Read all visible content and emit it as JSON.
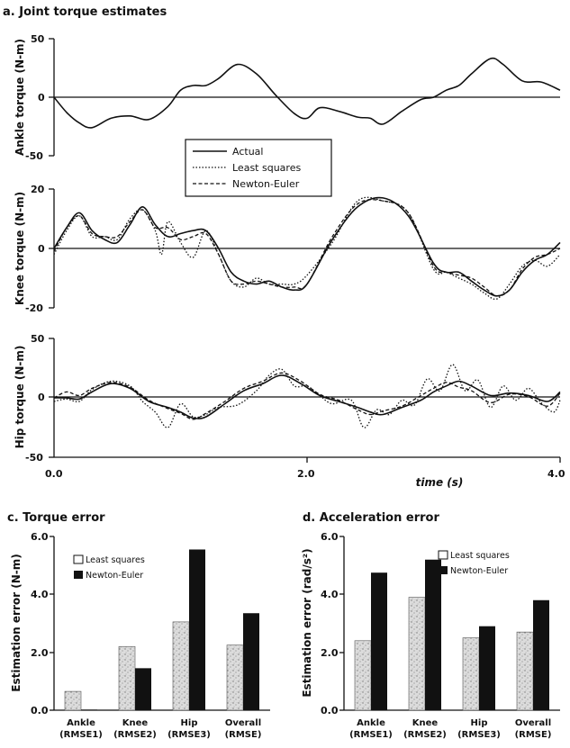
{
  "chart_data": [
    {
      "type": "line",
      "panel_title": "a. Joint torque estimates",
      "ylabel": "Ankle torque (N-m)",
      "ylim": [
        -50,
        50
      ],
      "yticks": [
        "50",
        "0",
        "-50"
      ],
      "xlim": [
        0,
        4
      ],
      "legend": [
        "Actual",
        "Least squares",
        "Newton-Euler"
      ],
      "series": [
        {
          "name": "Actual",
          "style": "solid",
          "x": [
            0,
            0.1,
            0.2,
            0.3,
            0.45,
            0.6,
            0.75,
            0.9,
            1.0,
            1.1,
            1.2,
            1.3,
            1.45,
            1.6,
            1.75,
            1.9,
            2.0,
            2.1,
            2.25,
            2.4,
            2.5,
            2.6,
            2.75,
            2.9,
            3.0,
            3.1,
            3.2,
            3.3,
            3.45,
            3.55,
            3.7,
            3.85,
            4.0
          ],
          "values": [
            0,
            -13,
            -22,
            -26,
            -18,
            -16,
            -19,
            -8,
            6,
            10,
            10,
            16,
            28,
            20,
            2,
            -14,
            -18,
            -9,
            -12,
            -17,
            -18,
            -23,
            -12,
            -2,
            0,
            6,
            10,
            20,
            33,
            28,
            14,
            13,
            6
          ]
        }
      ]
    },
    {
      "type": "line",
      "ylabel": "Knee torque (N-m)",
      "ylim": [
        -20,
        20
      ],
      "yticks": [
        "20",
        "0",
        "-20"
      ],
      "xlim": [
        0,
        4
      ],
      "series": [
        {
          "name": "Actual",
          "style": "solid",
          "x": [
            0,
            0.1,
            0.2,
            0.3,
            0.4,
            0.5,
            0.6,
            0.7,
            0.8,
            0.9,
            1.0,
            1.1,
            1.2,
            1.3,
            1.4,
            1.5,
            1.6,
            1.7,
            1.8,
            1.9,
            2.0,
            2.2,
            2.4,
            2.6,
            2.8,
            3.0,
            3.1,
            3.2,
            3.3,
            3.4,
            3.5,
            3.6,
            3.7,
            3.8,
            3.9,
            4.0
          ],
          "values": [
            0,
            7,
            12,
            6,
            3,
            2,
            8,
            14,
            8,
            4,
            5,
            6,
            6,
            0,
            -8,
            -11,
            -12,
            -11,
            -13,
            -14,
            -12,
            3,
            14,
            17,
            11,
            -5,
            -8,
            -8,
            -11,
            -14,
            -16,
            -14,
            -8,
            -4,
            -2,
            2
          ]
        },
        {
          "name": "Least squares",
          "style": "dotted",
          "x": [
            0,
            0.1,
            0.2,
            0.3,
            0.4,
            0.5,
            0.6,
            0.7,
            0.8,
            0.85,
            0.9,
            1.0,
            1.1,
            1.2,
            1.3,
            1.4,
            1.5,
            1.6,
            1.7,
            1.8,
            1.9,
            2.0,
            2.2,
            2.4,
            2.6,
            2.8,
            3.0,
            3.1,
            3.2,
            3.3,
            3.4,
            3.5,
            3.6,
            3.7,
            3.8,
            3.9,
            4.0
          ],
          "values": [
            -2,
            6,
            11,
            4,
            4,
            3,
            10,
            13,
            6,
            -2,
            9,
            2,
            -3,
            6,
            -2,
            -11,
            -13,
            -10,
            -12,
            -12,
            -12,
            -9,
            2,
            16,
            16,
            12,
            -7,
            -8,
            -10,
            -12,
            -15,
            -17,
            -12,
            -6,
            -4,
            -6,
            -2
          ]
        },
        {
          "name": "Newton-Euler",
          "style": "dashed",
          "x": [
            0,
            0.1,
            0.2,
            0.3,
            0.4,
            0.5,
            0.6,
            0.7,
            0.8,
            0.9,
            1.0,
            1.1,
            1.2,
            1.3,
            1.4,
            1.5,
            1.6,
            1.7,
            1.8,
            1.9,
            2.0,
            2.2,
            2.4,
            2.6,
            2.8,
            3.0,
            3.1,
            3.2,
            3.3,
            3.4,
            3.5,
            3.6,
            3.7,
            3.8,
            3.9,
            4.0
          ],
          "values": [
            -1,
            7,
            11,
            5,
            4,
            4,
            9,
            13,
            7,
            7,
            3,
            4,
            5,
            -2,
            -11,
            -12,
            -11,
            -12,
            -13,
            -13,
            -12,
            4,
            15,
            16,
            12,
            -6,
            -8,
            -9,
            -10,
            -13,
            -16,
            -14,
            -7,
            -3,
            -2,
            0
          ]
        }
      ]
    },
    {
      "type": "line",
      "ylabel": "Hip torque (N-m)",
      "ylim": [
        -50,
        50
      ],
      "yticks": [
        "50",
        "0",
        "-50"
      ],
      "xlim": [
        0,
        4
      ],
      "xticks": [
        "0.0",
        "2.0",
        "4.0"
      ],
      "xlabel": "time (s)",
      "series": [
        {
          "name": "Actual",
          "style": "solid",
          "x": [
            0,
            0.1,
            0.2,
            0.3,
            0.45,
            0.6,
            0.75,
            0.9,
            1.0,
            1.1,
            1.2,
            1.35,
            1.5,
            1.65,
            1.8,
            1.95,
            2.1,
            2.25,
            2.4,
            2.5,
            2.6,
            2.75,
            2.9,
            3.0,
            3.1,
            3.2,
            3.3,
            3.45,
            3.6,
            3.75,
            3.9,
            4.0
          ],
          "values": [
            0,
            0,
            -1,
            5,
            12,
            8,
            -3,
            -8,
            -12,
            -17,
            -16,
            -5,
            6,
            12,
            19,
            12,
            2,
            -3,
            -8,
            -12,
            -14,
            -8,
            -2,
            5,
            10,
            14,
            10,
            2,
            4,
            2,
            -3,
            5
          ]
        },
        {
          "name": "Least squares",
          "style": "dotted",
          "x": [
            0,
            0.1,
            0.2,
            0.3,
            0.45,
            0.6,
            0.7,
            0.8,
            0.9,
            1.0,
            1.1,
            1.2,
            1.3,
            1.45,
            1.6,
            1.7,
            1.8,
            1.9,
            2.0,
            2.1,
            2.2,
            2.35,
            2.45,
            2.55,
            2.65,
            2.75,
            2.85,
            2.95,
            3.05,
            3.15,
            3.25,
            3.35,
            3.45,
            3.55,
            3.65,
            3.75,
            3.85,
            3.95,
            4.0
          ],
          "values": [
            -3,
            -1,
            -3,
            7,
            14,
            10,
            -3,
            -12,
            -25,
            -5,
            -16,
            -14,
            -8,
            -6,
            6,
            19,
            24,
            10,
            10,
            2,
            -5,
            -2,
            -25,
            -10,
            -14,
            -2,
            -6,
            16,
            6,
            28,
            6,
            15,
            -8,
            10,
            -2,
            8,
            -4,
            -12,
            -2
          ]
        },
        {
          "name": "Newton-Euler",
          "style": "dashed",
          "x": [
            0,
            0.1,
            0.2,
            0.3,
            0.45,
            0.6,
            0.75,
            0.9,
            1.0,
            1.1,
            1.2,
            1.35,
            1.5,
            1.65,
            1.8,
            1.95,
            2.1,
            2.25,
            2.4,
            2.5,
            2.6,
            2.75,
            2.9,
            3.0,
            3.1,
            3.2,
            3.3,
            3.45,
            3.6,
            3.75,
            3.9,
            4.0
          ],
          "values": [
            0,
            5,
            2,
            8,
            13,
            9,
            -2,
            -9,
            -13,
            -18,
            -13,
            -3,
            8,
            14,
            21,
            14,
            3,
            -2,
            -10,
            -14,
            -11,
            -7,
            2,
            8,
            13,
            9,
            6,
            -4,
            3,
            1,
            -7,
            4
          ]
        }
      ]
    },
    {
      "type": "bar",
      "panel_title": "c. Torque error",
      "ylabel": "Estimation error (N-m)",
      "ylim": [
        0,
        6
      ],
      "yticks": [
        "6.0",
        "4.0",
        "2.0",
        "0.0"
      ],
      "categories": [
        [
          "Ankle",
          "(RMSE1)"
        ],
        [
          "Knee",
          "(RMSE2)"
        ],
        [
          "Hip",
          "(RMSE3)"
        ],
        [
          "Overall",
          "(RMSE)"
        ]
      ],
      "series": [
        {
          "name": "Least squares",
          "values": [
            0.65,
            2.2,
            3.05,
            2.25
          ]
        },
        {
          "name": "Newton-Euler",
          "values": [
            0.02,
            1.45,
            5.55,
            3.35
          ]
        }
      ]
    },
    {
      "type": "bar",
      "panel_title": "d. Acceleration error",
      "ylabel": "Estimation error (rad/s²)",
      "ylim": [
        0,
        6
      ],
      "yticks": [
        "6.0",
        "4.0",
        "2.0",
        "0.0"
      ],
      "categories": [
        [
          "Ankle",
          "(RMSE1)"
        ],
        [
          "Knee",
          "(RMSE2)"
        ],
        [
          "Hip",
          "(RMSE3)"
        ],
        [
          "Overall",
          "(RMSE)"
        ]
      ],
      "series": [
        {
          "name": "Least squares",
          "values": [
            2.4,
            3.9,
            2.5,
            2.7
          ]
        },
        {
          "name": "Newton-Euler",
          "values": [
            4.75,
            5.2,
            2.9,
            3.8
          ]
        }
      ]
    }
  ],
  "colors": {
    "ink": "#111111",
    "ls_fill": "#c4c4c4",
    "ne_fill": "#111111"
  }
}
